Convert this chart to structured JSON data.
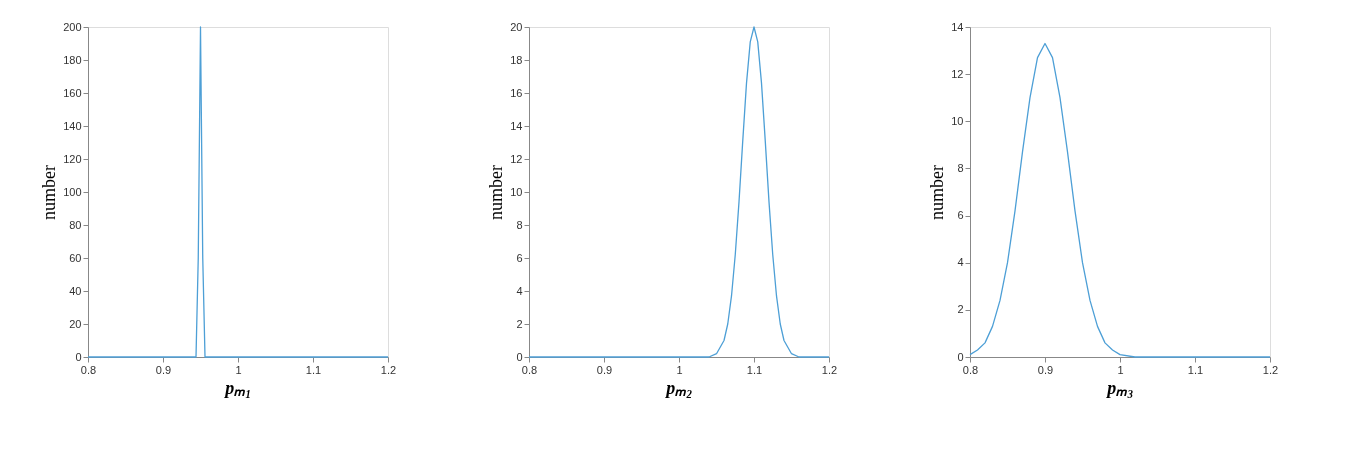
{
  "chart_data": [
    {
      "type": "line",
      "xlabel": "pₘ₁",
      "ylabel": "number",
      "xlim": [
        0.8,
        1.2
      ],
      "ylim": [
        0,
        200
      ],
      "xticks": [
        0.8,
        0.9,
        1,
        1.1,
        1.2
      ],
      "yticks": [
        0,
        20,
        40,
        60,
        80,
        100,
        120,
        140,
        160,
        180,
        200
      ],
      "grid": false,
      "series": [
        {
          "color": "#4d9fd6",
          "x": [
            0.8,
            0.9,
            0.944,
            0.947,
            0.95,
            0.953,
            0.956,
            1.0,
            1.2
          ],
          "values": [
            0,
            0,
            0,
            60,
            200,
            60,
            0,
            0,
            0
          ]
        }
      ]
    },
    {
      "type": "line",
      "xlabel": "pₘ₂",
      "ylabel": "number",
      "xlim": [
        0.8,
        1.2
      ],
      "ylim": [
        0,
        20
      ],
      "xticks": [
        0.8,
        0.9,
        1,
        1.1,
        1.2
      ],
      "yticks": [
        0,
        2,
        4,
        6,
        8,
        10,
        12,
        14,
        16,
        18,
        20
      ],
      "grid": false,
      "series": [
        {
          "color": "#4d9fd6",
          "x": [
            0.8,
            1.0,
            1.04,
            1.05,
            1.06,
            1.065,
            1.07,
            1.075,
            1.08,
            1.085,
            1.09,
            1.095,
            1.1,
            1.105,
            1.11,
            1.115,
            1.12,
            1.125,
            1.13,
            1.135,
            1.14,
            1.15,
            1.16,
            1.2
          ],
          "values": [
            0,
            0,
            0,
            0.2,
            1.0,
            2.0,
            3.7,
            6.2,
            9.4,
            13.1,
            16.6,
            19.1,
            20,
            19.1,
            16.6,
            13.1,
            9.4,
            6.2,
            3.7,
            2.0,
            1.0,
            0.2,
            0,
            0
          ]
        }
      ]
    },
    {
      "type": "line",
      "xlabel": "pₘ₃",
      "ylabel": "number",
      "xlim": [
        0.8,
        1.2
      ],
      "ylim": [
        0,
        14
      ],
      "xticks": [
        0.8,
        0.9,
        1,
        1.1,
        1.2
      ],
      "yticks": [
        0,
        2,
        4,
        6,
        8,
        10,
        12,
        14
      ],
      "grid": false,
      "series": [
        {
          "color": "#4d9fd6",
          "x": [
            0.8,
            0.81,
            0.82,
            0.83,
            0.84,
            0.85,
            0.86,
            0.87,
            0.88,
            0.89,
            0.9,
            0.91,
            0.92,
            0.93,
            0.94,
            0.95,
            0.96,
            0.97,
            0.98,
            0.99,
            1.0,
            1.02,
            1.2
          ],
          "values": [
            0.1,
            0.3,
            0.6,
            1.3,
            2.4,
            4.0,
            6.2,
            8.7,
            11.0,
            12.7,
            13.3,
            12.7,
            11.0,
            8.7,
            6.2,
            4.0,
            2.4,
            1.3,
            0.6,
            0.3,
            0.1,
            0,
            0
          ]
        }
      ]
    }
  ]
}
